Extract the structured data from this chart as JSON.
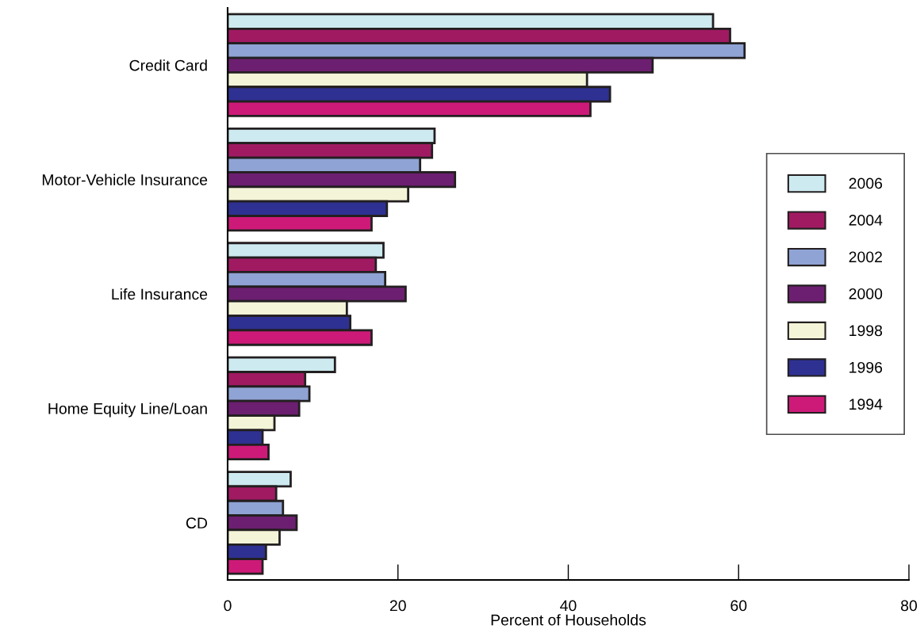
{
  "chart_data": {
    "type": "bar",
    "orientation": "horizontal",
    "xlabel": "Percent of Households",
    "categories": [
      "Credit Card",
      "Motor-Vehicle Insurance",
      "Life Insurance",
      "Home Equity Line/Loan",
      "CD"
    ],
    "series": [
      {
        "name": "2006",
        "color": "#cdeaf0",
        "values": [
          57.0,
          24.3,
          18.3,
          12.6,
          7.4
        ]
      },
      {
        "name": "2004",
        "color": "#a01a62",
        "values": [
          59.0,
          24.0,
          17.4,
          9.1,
          5.7
        ]
      },
      {
        "name": "2002",
        "color": "#8fa3d4",
        "values": [
          60.7,
          22.6,
          18.5,
          9.6,
          6.5
        ]
      },
      {
        "name": "2000",
        "color": "#6c1f70",
        "values": [
          49.9,
          26.7,
          20.9,
          8.4,
          8.1
        ]
      },
      {
        "name": "1998",
        "color": "#f4f5d8",
        "values": [
          42.2,
          21.2,
          14.0,
          5.5,
          6.1
        ]
      },
      {
        "name": "1996",
        "color": "#2e3192",
        "values": [
          44.9,
          18.7,
          14.4,
          4.1,
          4.5
        ]
      },
      {
        "name": "1994",
        "color": "#cd1a78",
        "values": [
          42.6,
          16.9,
          16.9,
          4.8,
          4.1
        ]
      }
    ],
    "xlim": [
      0,
      80
    ],
    "xticks": [
      0,
      20,
      40,
      60,
      80
    ],
    "grid": false,
    "legend": "right"
  }
}
